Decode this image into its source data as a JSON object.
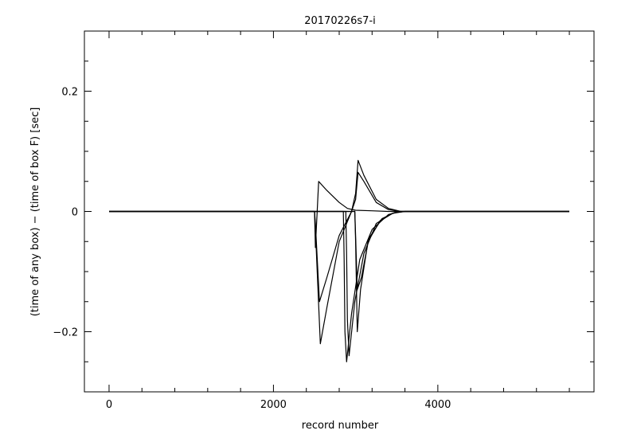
{
  "chart_data": {
    "type": "line",
    "title": "20170226s7-i",
    "xlabel": "record number",
    "ylabel": "(time of any box) − (time of box F) [sec]",
    "xlim": [
      -300,
      5900
    ],
    "ylim": [
      -0.3,
      0.3
    ],
    "x_ticks": [
      {
        "value": 0,
        "label": "0"
      },
      {
        "value": 2000,
        "label": "2000"
      },
      {
        "value": 4000,
        "label": "4000"
      }
    ],
    "y_ticks": [
      {
        "value": -0.2,
        "label": "−0.2"
      },
      {
        "value": 0,
        "label": "0"
      },
      {
        "value": 0.2,
        "label": "0.2"
      }
    ],
    "grid": false,
    "line_color": "#000000",
    "series": [
      {
        "x": [
          0,
          2400,
          2500,
          2510,
          2550,
          2650,
          2800,
          2900,
          3000,
          3200,
          3400,
          3500,
          3600,
          5600
        ],
        "y": [
          0,
          0,
          0,
          -0.06,
          0.05,
          0.035,
          0.015,
          0.005,
          0.002,
          0.001,
          0,
          0,
          0,
          0
        ]
      },
      {
        "x": [
          0,
          2500,
          2510,
          2560,
          2650,
          2800,
          2950,
          3000,
          3030,
          3100,
          3250,
          3400,
          3550,
          5600
        ],
        "y": [
          0,
          0,
          -0.02,
          -0.15,
          -0.11,
          -0.04,
          0,
          0.03,
          0.085,
          0.06,
          0.02,
          0.005,
          0,
          0
        ]
      },
      {
        "x": [
          0,
          2500,
          2510,
          2570,
          2650,
          2800,
          2950,
          3000,
          3030,
          3100,
          3250,
          3400,
          3550,
          5600
        ],
        "y": [
          0,
          0,
          -0.03,
          -0.22,
          -0.16,
          -0.05,
          0,
          0.02,
          0.065,
          0.05,
          0.015,
          0.003,
          0,
          0
        ]
      },
      {
        "x": [
          0,
          2850,
          2860,
          2870,
          2890,
          2950,
          3050,
          3200,
          3400,
          3550,
          5600
        ],
        "y": [
          0,
          0,
          -0.08,
          -0.2,
          -0.25,
          -0.17,
          -0.08,
          -0.03,
          -0.005,
          0,
          0
        ]
      },
      {
        "x": [
          0,
          2880,
          2890,
          2900,
          2920,
          2990,
          3100,
          3250,
          3450,
          3550,
          5600
        ],
        "y": [
          0,
          0,
          -0.07,
          -0.18,
          -0.24,
          -0.15,
          -0.07,
          -0.02,
          -0.003,
          0,
          0
        ]
      },
      {
        "x": [
          0,
          2990,
          3000,
          3020,
          3060,
          3150,
          3300,
          3450,
          3600,
          5600
        ],
        "y": [
          0,
          0,
          -0.05,
          -0.2,
          -0.13,
          -0.05,
          -0.015,
          -0.003,
          0,
          0
        ]
      },
      {
        "x": [
          0,
          2990,
          3000,
          3020,
          3070,
          3160,
          3320,
          3470,
          3600,
          5600
        ],
        "y": [
          0,
          0,
          -0.04,
          -0.13,
          -0.11,
          -0.045,
          -0.012,
          -0.002,
          0,
          0
        ]
      }
    ]
  }
}
